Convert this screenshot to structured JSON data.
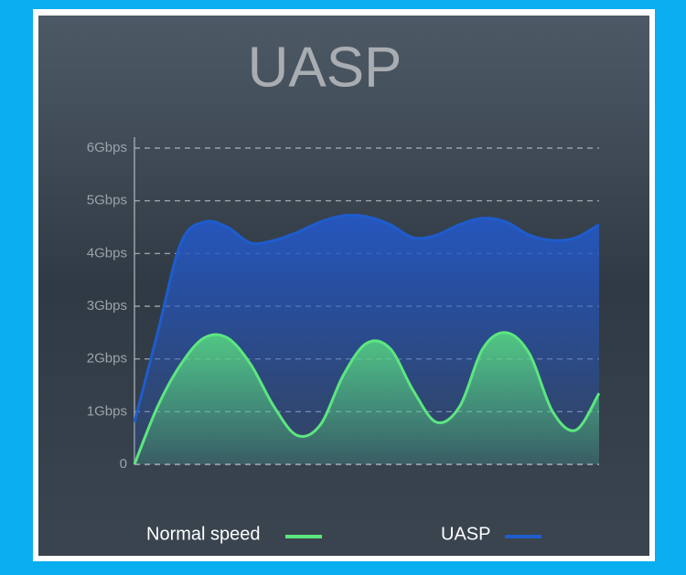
{
  "chart_data": {
    "type": "area",
    "title": "UASP",
    "categories": [
      null,
      null,
      null,
      null,
      null,
      null,
      null,
      null,
      null,
      null,
      null,
      null,
      null,
      null,
      null,
      null,
      null,
      null,
      null,
      null,
      null
    ],
    "series": [
      {
        "name": "Normal speed",
        "color": "#5ce67f",
        "values": [
          0,
          1.1,
          1.9,
          2.4,
          2.4,
          1.9,
          1.1,
          0.55,
          0.75,
          1.7,
          2.3,
          2.2,
          1.4,
          0.8,
          1.1,
          2.2,
          2.5,
          2.1,
          1.0,
          0.65,
          1.35
        ]
      },
      {
        "name": "UASP",
        "color": "#1f5ccc",
        "values": [
          0.8,
          2.5,
          4.2,
          4.6,
          4.5,
          4.2,
          4.25,
          4.4,
          4.6,
          4.72,
          4.7,
          4.55,
          4.3,
          4.35,
          4.55,
          4.67,
          4.6,
          4.35,
          4.25,
          4.3,
          4.55
        ]
      }
    ],
    "ylim": [
      0,
      6
    ],
    "yticks": [
      0,
      {
        "value": 1,
        "label": "1Gbps"
      },
      {
        "value": 2,
        "label": "2Gbps"
      },
      {
        "value": 3,
        "label": "3Gbps"
      },
      {
        "value": 4,
        "label": "4Gbps"
      },
      {
        "value": 5,
        "label": "5Gbps"
      },
      {
        "value": 6,
        "label": "6Gbps"
      }
    ],
    "grid": true,
    "legend": "bottom"
  }
}
